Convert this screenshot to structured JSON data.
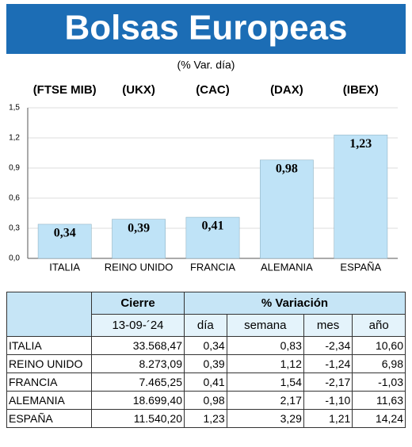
{
  "chart_data": {
    "type": "bar",
    "title": "Bolsas Europeas",
    "subtitle": "(% Var. día)",
    "top_labels": [
      "(FTSE MIB)",
      "(UKX)",
      "(CAC)",
      "(DAX)",
      "(IBEX)"
    ],
    "categories": [
      "ITALIA",
      "REINO UNIDO",
      "FRANCIA",
      "ALEMANIA",
      "ESPAÑA"
    ],
    "values": [
      0.34,
      0.39,
      0.41,
      0.98,
      1.23
    ],
    "value_labels": [
      "0,34",
      "0,39",
      "0,41",
      "0,98",
      "1,23"
    ],
    "color": "#bfe3f7",
    "ylim": [
      0,
      1.5
    ],
    "yticks": [
      {
        "value": 0,
        "label": "0,0"
      },
      {
        "value": 0.3,
        "label": "0,3"
      },
      {
        "value": 0.6,
        "label": "0,6"
      },
      {
        "value": 0.9,
        "label": "0,9"
      },
      {
        "value": 1.2,
        "label": "1,2"
      },
      {
        "value": 1.5,
        "label": "1,5"
      }
    ],
    "grid": true
  },
  "table": {
    "header": [
      "Cierre",
      "% Variación"
    ],
    "subheader": [
      "13-09-´24",
      "día",
      "semana",
      "mes",
      "año"
    ],
    "rows": [
      [
        "ITALIA",
        "33.568,47",
        "0,34",
        "0,83",
        "-2,34",
        "10,60"
      ],
      [
        "REINO UNIDO",
        "8.273,09",
        "0,39",
        "1,12",
        "-1,24",
        "6,98"
      ],
      [
        "FRANCIA",
        "7.465,25",
        "0,41",
        "1,54",
        "-2,17",
        "-1,03"
      ],
      [
        "ALEMANIA",
        "18.699,40",
        "0,98",
        "2,17",
        "-1,10",
        "11,63"
      ],
      [
        "ESPAÑA",
        "11.540,20",
        "1,23",
        "3,29",
        "1,21",
        "14,24"
      ]
    ]
  }
}
